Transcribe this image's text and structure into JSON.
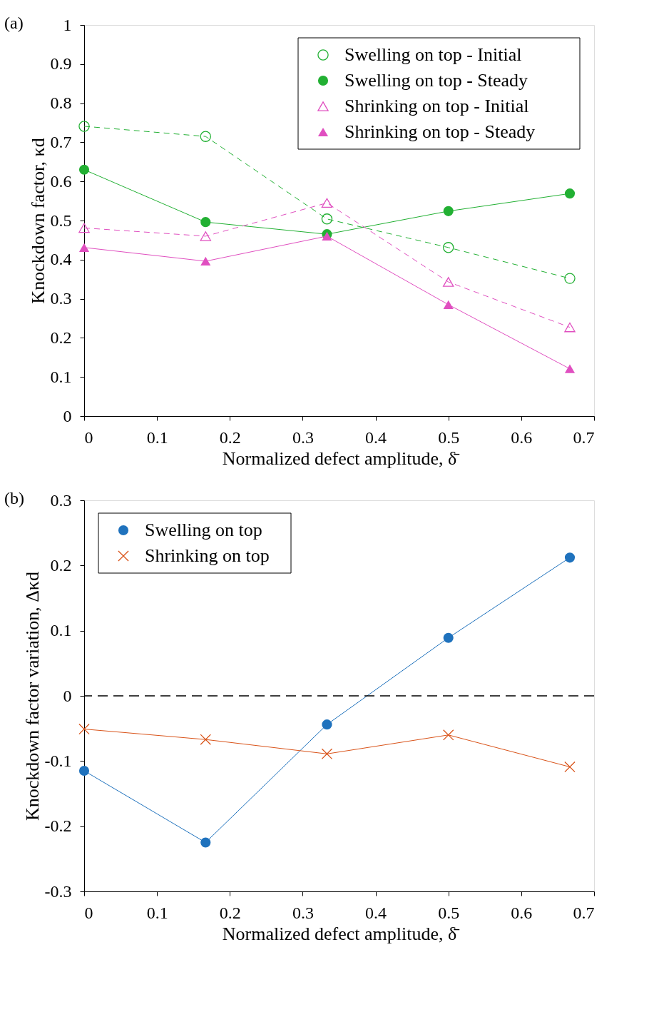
{
  "chart_data": [
    {
      "type": "line",
      "xlabel": "Normalized defect amplitude, δ̄",
      "ylabel": "Knockdown factor, κd",
      "annotations": [
        "(a)"
      ],
      "x": [
        0,
        0.1667,
        0.3333,
        0.5,
        0.6667
      ],
      "series": [
        {
          "name": "Swelling on top - Initial",
          "color": "#22b033",
          "marker": "circle",
          "line_style": "dashed",
          "values": [
            0.741,
            0.715,
            0.504,
            0.431,
            0.352
          ]
        },
        {
          "name": "Swelling on top - Steady",
          "color": "#22b033",
          "marker": "circle",
          "line_style": "solid",
          "values": [
            0.63,
            0.496,
            0.465,
            0.524,
            0.569
          ]
        },
        {
          "name": "Shrinking on top - Initial",
          "color": "#e04fc0",
          "marker": "triangle",
          "line_style": "dashed",
          "values": [
            0.481,
            0.46,
            0.545,
            0.343,
            0.227
          ]
        },
        {
          "name": "Shrinking on top - Steady",
          "color": "#e04fc0",
          "marker": "triangle",
          "line_style": "solid",
          "values": [
            0.431,
            0.396,
            0.46,
            0.285,
            0.121
          ]
        }
      ],
      "xlim": [
        0,
        0.7
      ],
      "xticks": [
        0,
        0.1,
        0.2,
        0.3,
        0.4,
        0.5,
        0.6,
        0.7
      ],
      "ylim": [
        0,
        1
      ],
      "yticks": [
        0,
        0.1,
        0.2,
        0.3,
        0.4,
        0.5,
        0.6,
        0.7,
        0.8,
        0.9,
        1
      ],
      "grid": false,
      "legend": "top right"
    },
    {
      "type": "line",
      "xlabel": "Normalized defect amplitude, δ̄",
      "ylabel": "Knockdown factor variation, Δκd",
      "annotations": [
        "(b)"
      ],
      "x": [
        0,
        0.1667,
        0.3333,
        0.5,
        0.6667
      ],
      "series": [
        {
          "name": "Swelling on top",
          "color": "#1f72bd",
          "marker": "circle",
          "line_style": "solid",
          "values": [
            -0.115,
            -0.225,
            -0.044,
            0.089,
            0.212
          ]
        },
        {
          "name": "Shrinking on top",
          "color": "#d95319",
          "marker": "cross",
          "line_style": "solid",
          "values": [
            -0.051,
            -0.067,
            -0.089,
            -0.06,
            -0.109
          ]
        }
      ],
      "ref_lines": [
        {
          "axis": "y",
          "value": 0,
          "color": "#000000",
          "line_style": "dashed"
        }
      ],
      "xlim": [
        0,
        0.7
      ],
      "xticks": [
        0,
        0.1,
        0.2,
        0.3,
        0.4,
        0.5,
        0.6,
        0.7
      ],
      "ylim": [
        -0.3,
        0.3
      ],
      "yticks": [
        -0.3,
        -0.2,
        -0.1,
        0,
        0.1,
        0.2,
        0.3
      ],
      "grid": false,
      "legend": "top left"
    }
  ]
}
